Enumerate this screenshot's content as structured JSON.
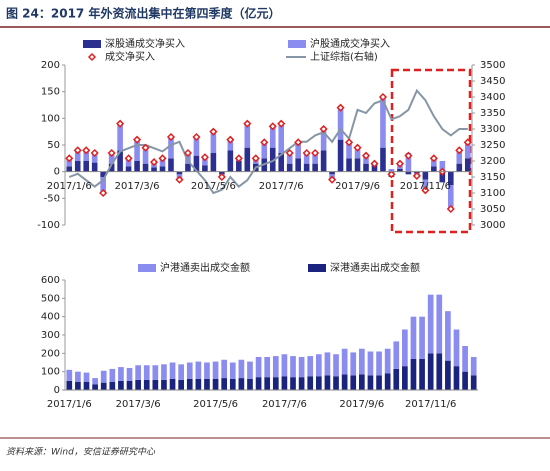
{
  "title": "图 24：2017 年外资流出集中在第四季度（亿元）",
  "source": "资料来源：Wind，安信证券研究中心",
  "chart_data": [
    {
      "type": "bar",
      "stacked": true,
      "categories": [
        "2017/1/6",
        null,
        null,
        null,
        null,
        null,
        null,
        null,
        "2017/3/6",
        null,
        null,
        null,
        null,
        null,
        null,
        null,
        null,
        "2017/5/6",
        null,
        null,
        null,
        null,
        null,
        null,
        null,
        "2017/7/6",
        null,
        null,
        null,
        null,
        null,
        null,
        null,
        null,
        "2017/9/6",
        null,
        null,
        null,
        null,
        null,
        null,
        null,
        "2017/11/6",
        null,
        null,
        null,
        null,
        null
      ],
      "ylim": [
        -100,
        200
      ],
      "yticks": [
        -100,
        -50,
        0,
        50,
        100,
        150,
        200
      ],
      "y2lim": [
        3000,
        3500
      ],
      "y2ticks": [
        3000,
        3050,
        3100,
        3150,
        3200,
        3250,
        3300,
        3350,
        3400,
        3450,
        3500
      ],
      "grid": false,
      "series": [
        {
          "name": "深股通成交净买入",
          "type": "bar",
          "color": "#2b2f8f",
          "values": [
            10,
            20,
            20,
            17,
            -10,
            15,
            40,
            10,
            20,
            15,
            8,
            10,
            25,
            -5,
            15,
            30,
            12,
            35,
            -5,
            40,
            20,
            45,
            15,
            25,
            45,
            35,
            15,
            25,
            15,
            15,
            40,
            -5,
            60,
            25,
            25,
            15,
            15,
            45,
            -10,
            5,
            -5,
            -3,
            -15,
            10,
            -20,
            -25,
            15,
            25
          ]
        },
        {
          "name": "沪股通成交净买入",
          "type": "bar",
          "color": "#8b8cf0",
          "values": [
            15,
            20,
            20,
            18,
            -30,
            20,
            50,
            15,
            40,
            30,
            10,
            15,
            40,
            -10,
            20,
            35,
            15,
            40,
            -5,
            20,
            5,
            45,
            10,
            30,
            40,
            55,
            20,
            30,
            20,
            20,
            40,
            -10,
            60,
            30,
            20,
            15,
            0,
            95,
            5,
            10,
            35,
            -5,
            -20,
            15,
            20,
            -45,
            25,
            30
          ]
        },
        {
          "name": "成交净买入",
          "type": "scatter",
          "color": "#e02020",
          "values": [
            25,
            40,
            40,
            35,
            -40,
            35,
            90,
            25,
            60,
            45,
            18,
            25,
            65,
            -15,
            35,
            65,
            27,
            75,
            -10,
            60,
            25,
            90,
            25,
            55,
            85,
            90,
            35,
            55,
            35,
            35,
            80,
            -15,
            120,
            55,
            45,
            30,
            15,
            140,
            -5,
            15,
            30,
            -8,
            -35,
            25,
            0,
            -70,
            40,
            55
          ]
        },
        {
          "name": "上证综指(右轴)",
          "type": "line",
          "axis": "y2",
          "color": "#8796a6",
          "values": [
            3150,
            3160,
            3140,
            3120,
            3140,
            3190,
            3230,
            3240,
            3250,
            3250,
            3240,
            3230,
            3250,
            3260,
            3200,
            3170,
            3140,
            3100,
            3110,
            3150,
            3120,
            3140,
            3180,
            3190,
            3200,
            3220,
            3240,
            3260,
            3260,
            3280,
            3290,
            3260,
            3300,
            3270,
            3360,
            3350,
            3380,
            3390,
            3330,
            3340,
            3360,
            3420,
            3390,
            3340,
            3300,
            3280,
            3300,
            3300
          ]
        }
      ]
    },
    {
      "type": "bar",
      "stacked": true,
      "categories": [
        "2017/1/6",
        null,
        null,
        null,
        null,
        null,
        null,
        null,
        "2017/3/6",
        null,
        null,
        null,
        null,
        null,
        null,
        null,
        null,
        "2017/5/6",
        null,
        null,
        null,
        null,
        null,
        null,
        null,
        "2017/7/6",
        null,
        null,
        null,
        null,
        null,
        null,
        null,
        null,
        "2017/9/6",
        null,
        null,
        null,
        null,
        null,
        null,
        null,
        "2017/11/6",
        null,
        null,
        null,
        null,
        null
      ],
      "ylim": [
        0,
        600
      ],
      "yticks": [
        0,
        100,
        200,
        300,
        400,
        500,
        600
      ],
      "grid": false,
      "series": [
        {
          "name": "深港通卖出成交金额",
          "type": "bar",
          "color": "#1a237e",
          "values": [
            50,
            45,
            45,
            30,
            40,
            45,
            50,
            50,
            55,
            55,
            55,
            55,
            60,
            55,
            60,
            60,
            60,
            60,
            65,
            60,
            65,
            60,
            70,
            70,
            70,
            75,
            70,
            70,
            75,
            75,
            80,
            75,
            85,
            80,
            85,
            80,
            80,
            90,
            115,
            130,
            170,
            170,
            200,
            200,
            160,
            130,
            100,
            80
          ]
        },
        {
          "name": "沪港通卖出成交金额",
          "type": "bar",
          "color": "#8b8cf0",
          "values": [
            60,
            55,
            50,
            35,
            65,
            70,
            75,
            70,
            80,
            80,
            80,
            85,
            90,
            85,
            90,
            95,
            90,
            95,
            100,
            90,
            100,
            95,
            110,
            110,
            115,
            120,
            115,
            110,
            110,
            120,
            125,
            120,
            140,
            125,
            140,
            130,
            130,
            135,
            150,
            200,
            230,
            230,
            320,
            320,
            270,
            200,
            140,
            100
          ]
        }
      ]
    }
  ]
}
